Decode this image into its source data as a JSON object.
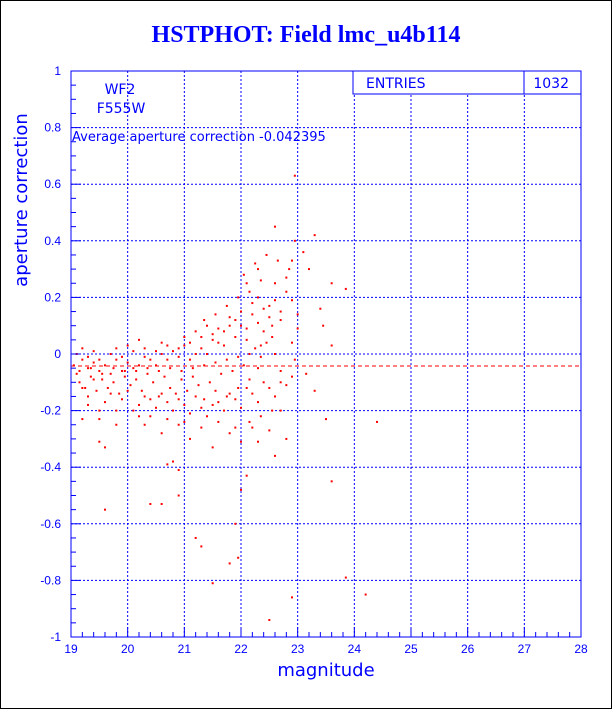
{
  "chart_data": {
    "type": "scatter",
    "title": "HSTPHOT: Field lmc_u4b114",
    "xlabel": "magnitude",
    "ylabel": "aperture correction",
    "xlim": [
      19,
      28
    ],
    "ylim": [
      -1,
      1
    ],
    "x_ticks": [
      "19",
      "20",
      "21",
      "22",
      "23",
      "24",
      "25",
      "26",
      "27",
      "28"
    ],
    "y_ticks": [
      "-1",
      "-0.8",
      "-0.6",
      "-0.4",
      "-0.2",
      "0",
      "0.2",
      "0.4",
      "0.6",
      "0.8",
      "1"
    ],
    "grid": true,
    "stats_box": {
      "label": "ENTRIES",
      "value": "1032",
      "placement": "top-right"
    },
    "annotations": {
      "camera": "WF2",
      "filter": "F555W",
      "average": "Average aperture correction -0.042395"
    },
    "reference_line": {
      "y": -0.042395,
      "style": "dashed",
      "color": "#ff0000"
    },
    "marker_color": "#ff0000",
    "axis_color": "#0000ff",
    "entries_total": 1032,
    "points": [
      [
        22.95,
        0.63
      ],
      [
        22.6,
        0.45
      ],
      [
        23.3,
        0.42
      ],
      [
        23.1,
        0.36
      ],
      [
        22.9,
        0.33
      ],
      [
        23.6,
        0.25
      ],
      [
        23.85,
        0.23
      ],
      [
        23.4,
        0.16
      ],
      [
        23.45,
        0.1
      ],
      [
        23.6,
        0.03
      ],
      [
        24.4,
        -0.24
      ],
      [
        23.15,
        -0.07
      ],
      [
        23.3,
        -0.13
      ],
      [
        23.5,
        -0.23
      ],
      [
        23.6,
        -0.45
      ],
      [
        23.85,
        -0.79
      ],
      [
        24.2,
        -0.85
      ],
      [
        22.9,
        -0.86
      ],
      [
        22.5,
        -0.94
      ],
      [
        21.5,
        -0.81
      ],
      [
        21.8,
        -0.74
      ],
      [
        21.95,
        -0.72
      ],
      [
        21.3,
        -0.68
      ],
      [
        21.2,
        -0.65
      ],
      [
        21.9,
        -0.6
      ],
      [
        20.4,
        -0.53
      ],
      [
        20.6,
        -0.53
      ],
      [
        19.6,
        -0.55
      ],
      [
        20.9,
        -0.5
      ],
      [
        22.0,
        -0.48
      ],
      [
        22.1,
        -0.43
      ],
      [
        20.9,
        -0.41
      ],
      [
        20.8,
        -0.38
      ],
      [
        20.7,
        -0.39
      ],
      [
        21.5,
        -0.33
      ],
      [
        19.5,
        -0.31
      ],
      [
        19.6,
        -0.33
      ],
      [
        22.3,
        -0.31
      ],
      [
        22.8,
        -0.3
      ],
      [
        22.6,
        -0.36
      ],
      [
        19.3,
        -0.18
      ],
      [
        19.2,
        -0.23
      ],
      [
        19.5,
        -0.23
      ],
      [
        19.8,
        -0.2
      ],
      [
        20.2,
        -0.22
      ],
      [
        20.3,
        -0.25
      ],
      [
        20.6,
        -0.28
      ],
      [
        20.9,
        -0.25
      ],
      [
        21.1,
        -0.3
      ],
      [
        21.8,
        -0.28
      ],
      [
        22.0,
        -0.31
      ],
      [
        22.2,
        -0.26
      ],
      [
        22.5,
        -0.27
      ],
      [
        22.7,
        -0.2
      ],
      [
        22.9,
        -0.08
      ],
      [
        22.7,
        -0.1
      ],
      [
        22.6,
        0.0
      ],
      [
        22.3,
        -0.05
      ],
      [
        22.1,
        0.05
      ],
      [
        22.4,
        0.08
      ],
      [
        22.7,
        0.12
      ],
      [
        22.5,
        0.17
      ],
      [
        22.2,
        0.18
      ],
      [
        22.0,
        0.15
      ],
      [
        21.9,
        0.12
      ],
      [
        21.8,
        0.1
      ],
      [
        22.3,
        0.2
      ],
      [
        22.6,
        0.25
      ],
      [
        22.8,
        0.27
      ],
      [
        22.45,
        0.35
      ],
      [
        22.3,
        0.3
      ],
      [
        22.9,
        0.19
      ],
      [
        23.0,
        0.14
      ],
      [
        22.1,
        0.25
      ],
      [
        21.7,
        0.08
      ],
      [
        21.6,
        0.04
      ],
      [
        21.5,
        0.05
      ],
      [
        21.4,
        0.0
      ],
      [
        21.3,
        0.02
      ],
      [
        21.2,
        0.0
      ],
      [
        21.1,
        -0.02
      ],
      [
        21.0,
        0.03
      ],
      [
        20.9,
        -0.01
      ],
      [
        20.8,
        0.01
      ],
      [
        20.7,
        -0.02
      ],
      [
        20.6,
        0.0
      ],
      [
        20.5,
        -0.04
      ],
      [
        20.4,
        -0.02
      ],
      [
        20.3,
        -0.01
      ],
      [
        20.2,
        -0.04
      ],
      [
        20.1,
        -0.05
      ],
      [
        20.0,
        -0.03
      ],
      [
        19.9,
        -0.06
      ],
      [
        19.8,
        -0.02
      ],
      [
        19.7,
        -0.07
      ],
      [
        19.6,
        -0.04
      ],
      [
        19.5,
        -0.06
      ],
      [
        19.4,
        -0.03
      ],
      [
        19.3,
        -0.05
      ],
      [
        19.2,
        -0.02
      ],
      [
        19.1,
        -0.07
      ],
      [
        19.05,
        -0.04
      ],
      [
        19.15,
        -0.1
      ],
      [
        19.25,
        -0.12
      ],
      [
        19.35,
        -0.08
      ],
      [
        19.45,
        -0.13
      ],
      [
        19.55,
        -0.09
      ],
      [
        19.65,
        -0.12
      ],
      [
        19.75,
        -0.1
      ],
      [
        19.85,
        -0.14
      ],
      [
        19.95,
        -0.08
      ],
      [
        20.05,
        -0.11
      ],
      [
        20.15,
        -0.09
      ],
      [
        20.25,
        -0.13
      ],
      [
        20.35,
        -0.07
      ],
      [
        20.45,
        -0.1
      ],
      [
        20.55,
        -0.15
      ],
      [
        20.65,
        -0.08
      ],
      [
        20.75,
        -0.12
      ],
      [
        20.85,
        -0.14
      ],
      [
        20.95,
        -0.09
      ],
      [
        21.05,
        -0.13
      ],
      [
        21.15,
        -0.08
      ],
      [
        21.25,
        -0.11
      ],
      [
        21.35,
        -0.16
      ],
      [
        21.45,
        -0.1
      ],
      [
        21.55,
        -0.13
      ],
      [
        21.65,
        -0.07
      ],
      [
        21.75,
        -0.15
      ],
      [
        21.85,
        -0.06
      ],
      [
        21.95,
        -0.12
      ],
      [
        22.05,
        -0.04
      ],
      [
        22.15,
        -0.09
      ],
      [
        22.25,
        0.02
      ],
      [
        22.35,
        -0.01
      ],
      [
        22.45,
        0.04
      ],
      [
        22.55,
        0.06
      ],
      [
        19.1,
        0.0
      ],
      [
        19.2,
        0.02
      ],
      [
        19.3,
        -0.01
      ],
      [
        19.4,
        0.01
      ],
      [
        19.5,
        -0.02
      ],
      [
        19.7,
        0.0
      ],
      [
        19.9,
        -0.01
      ],
      [
        20.1,
        0.01
      ],
      [
        20.3,
        0.02
      ],
      [
        20.5,
        0.01
      ],
      [
        20.7,
        0.03
      ],
      [
        20.9,
        0.02
      ],
      [
        21.1,
        0.04
      ],
      [
        21.3,
        0.06
      ],
      [
        21.5,
        0.07
      ],
      [
        21.7,
        0.03
      ],
      [
        21.9,
        0.06
      ],
      [
        22.1,
        0.09
      ],
      [
        22.3,
        0.11
      ],
      [
        22.5,
        0.13
      ],
      [
        22.7,
        0.15
      ],
      [
        19.15,
        -0.06
      ],
      [
        19.35,
        -0.05
      ],
      [
        19.55,
        -0.07
      ],
      [
        19.75,
        -0.05
      ],
      [
        19.95,
        -0.06
      ],
      [
        20.15,
        -0.06
      ],
      [
        20.35,
        -0.05
      ],
      [
        20.55,
        -0.06
      ],
      [
        20.75,
        -0.05
      ],
      [
        20.95,
        -0.06
      ],
      [
        21.15,
        -0.05
      ],
      [
        21.35,
        -0.04
      ],
      [
        21.55,
        -0.03
      ],
      [
        21.75,
        -0.02
      ],
      [
        21.95,
        -0.01
      ],
      [
        22.15,
        0.0
      ],
      [
        22.35,
        0.03
      ],
      [
        22.55,
        0.1
      ],
      [
        19.3,
        -0.15
      ],
      [
        19.6,
        -0.17
      ],
      [
        19.9,
        -0.16
      ],
      [
        20.2,
        -0.18
      ],
      [
        20.5,
        -0.19
      ],
      [
        20.8,
        -0.2
      ],
      [
        21.1,
        -0.21
      ],
      [
        21.4,
        -0.22
      ],
      [
        21.7,
        -0.2
      ],
      [
        22.0,
        -0.19
      ],
      [
        22.3,
        -0.17
      ],
      [
        22.6,
        -0.15
      ],
      [
        20.4,
        -0.16
      ],
      [
        20.7,
        -0.17
      ],
      [
        21.0,
        -0.18
      ],
      [
        21.3,
        -0.19
      ],
      [
        21.6,
        -0.17
      ],
      [
        21.9,
        -0.16
      ],
      [
        22.2,
        -0.14
      ],
      [
        22.5,
        -0.12
      ],
      [
        22.8,
        -0.11
      ],
      [
        21.2,
        0.08
      ],
      [
        21.4,
        0.1
      ],
      [
        21.6,
        0.09
      ],
      [
        21.8,
        0.13
      ],
      [
        22.0,
        0.1
      ],
      [
        22.2,
        0.14
      ],
      [
        22.4,
        0.16
      ],
      [
        22.6,
        0.19
      ],
      [
        22.8,
        0.22
      ],
      [
        23.0,
        0.09
      ],
      [
        22.9,
        0.04
      ],
      [
        20.0,
        0.03
      ],
      [
        20.2,
        0.05
      ],
      [
        20.6,
        0.04
      ],
      [
        21.0,
        0.06
      ],
      [
        19.8,
        0.02
      ],
      [
        19.4,
        -0.09
      ],
      [
        19.2,
        -0.12
      ],
      [
        19.7,
        -0.14
      ],
      [
        20.0,
        -0.13
      ],
      [
        20.3,
        -0.15
      ],
      [
        20.6,
        -0.14
      ],
      [
        20.9,
        -0.16
      ],
      [
        21.2,
        -0.15
      ],
      [
        21.5,
        -0.18
      ],
      [
        21.8,
        -0.14
      ],
      [
        22.1,
        -0.12
      ],
      [
        22.4,
        -0.1
      ],
      [
        22.7,
        -0.06
      ],
      [
        22.95,
        -0.02
      ],
      [
        22.55,
        -0.2
      ],
      [
        22.35,
        -0.22
      ],
      [
        22.15,
        -0.24
      ],
      [
        21.9,
        -0.26
      ],
      [
        21.6,
        -0.24
      ],
      [
        21.3,
        -0.26
      ],
      [
        21.0,
        -0.24
      ],
      [
        20.7,
        -0.23
      ],
      [
        20.4,
        -0.22
      ],
      [
        20.1,
        -0.2
      ],
      [
        19.8,
        -0.25
      ],
      [
        19.5,
        -0.2
      ],
      [
        22.85,
        0.3
      ],
      [
        22.65,
        0.33
      ],
      [
        22.95,
        0.4
      ],
      [
        23.2,
        0.3
      ],
      [
        22.35,
        0.26
      ],
      [
        22.15,
        0.22
      ],
      [
        21.95,
        0.2
      ],
      [
        21.75,
        0.17
      ],
      [
        21.55,
        0.14
      ],
      [
        21.35,
        0.12
      ],
      [
        22.05,
        0.28
      ],
      [
        22.25,
        0.32
      ]
    ]
  }
}
